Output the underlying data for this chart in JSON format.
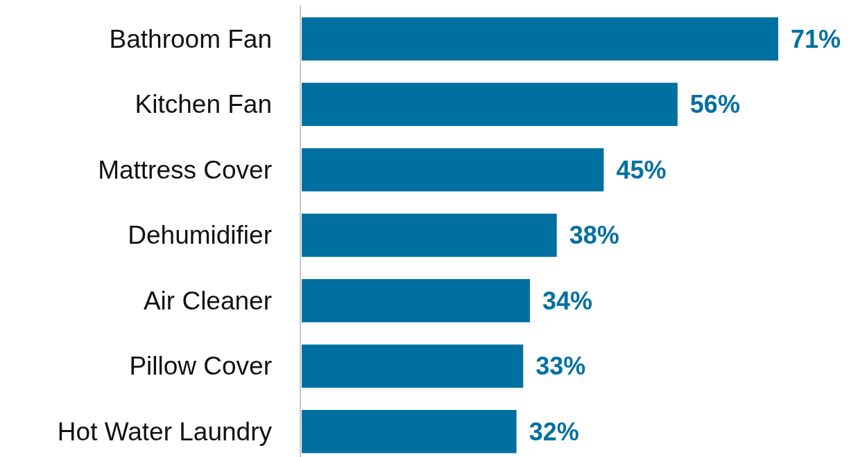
{
  "chart_data": {
    "type": "bar",
    "orientation": "horizontal",
    "categories": [
      "Bathroom Fan",
      "Kitchen Fan",
      "Mattress Cover",
      "Dehumidifier",
      "Air Cleaner",
      "Pillow Cover",
      "Hot Water Laundry"
    ],
    "values": [
      71,
      56,
      45,
      38,
      34,
      33,
      32
    ],
    "value_labels": [
      "71%",
      "56%",
      "45%",
      "38%",
      "34%",
      "33%",
      "32%"
    ],
    "color": "#0070a0"
  }
}
